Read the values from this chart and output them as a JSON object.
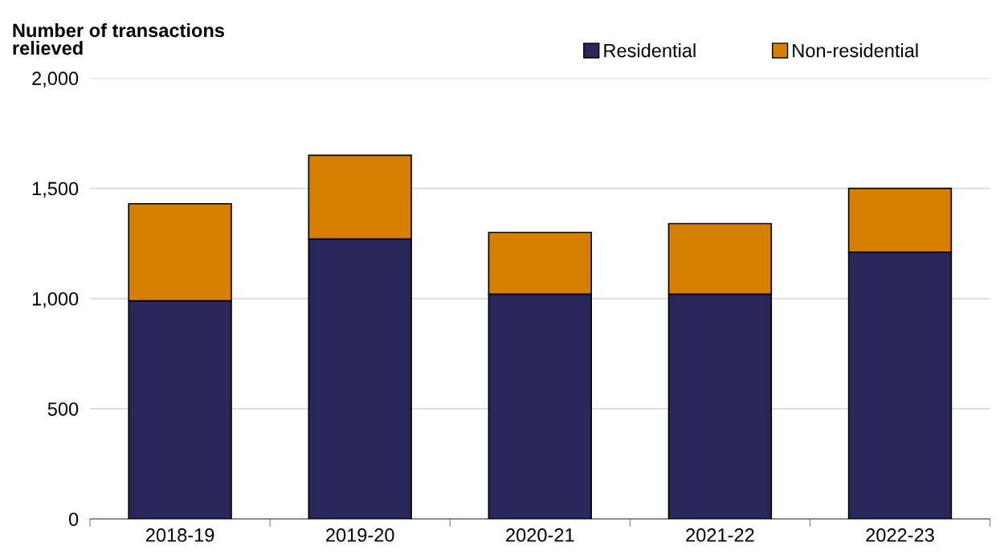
{
  "chart_data": {
    "type": "bar",
    "ylabel": "Number of transactions\nrelieved",
    "categories": [
      "2018-19",
      "2019-20",
      "2020-21",
      "2021-22",
      "2022-23"
    ],
    "series": [
      {
        "name": "Residential",
        "color": "#29275a",
        "values": [
          990,
          1270,
          1020,
          1020,
          1210
        ]
      },
      {
        "name": "Non-residential",
        "color": "#d67f00",
        "values": [
          440,
          380,
          280,
          320,
          290
        ]
      }
    ],
    "stacked": true,
    "ylim": [
      0,
      2000
    ],
    "yticks": [
      0,
      {
        "value": 500,
        "label": "500"
      },
      {
        "value": 1000,
        "label": "1,000"
      },
      {
        "value": 1500,
        "label": "1,500"
      },
      {
        "value": 2000,
        "label": "2,000"
      }
    ],
    "grid": "y",
    "legend": "top right"
  }
}
